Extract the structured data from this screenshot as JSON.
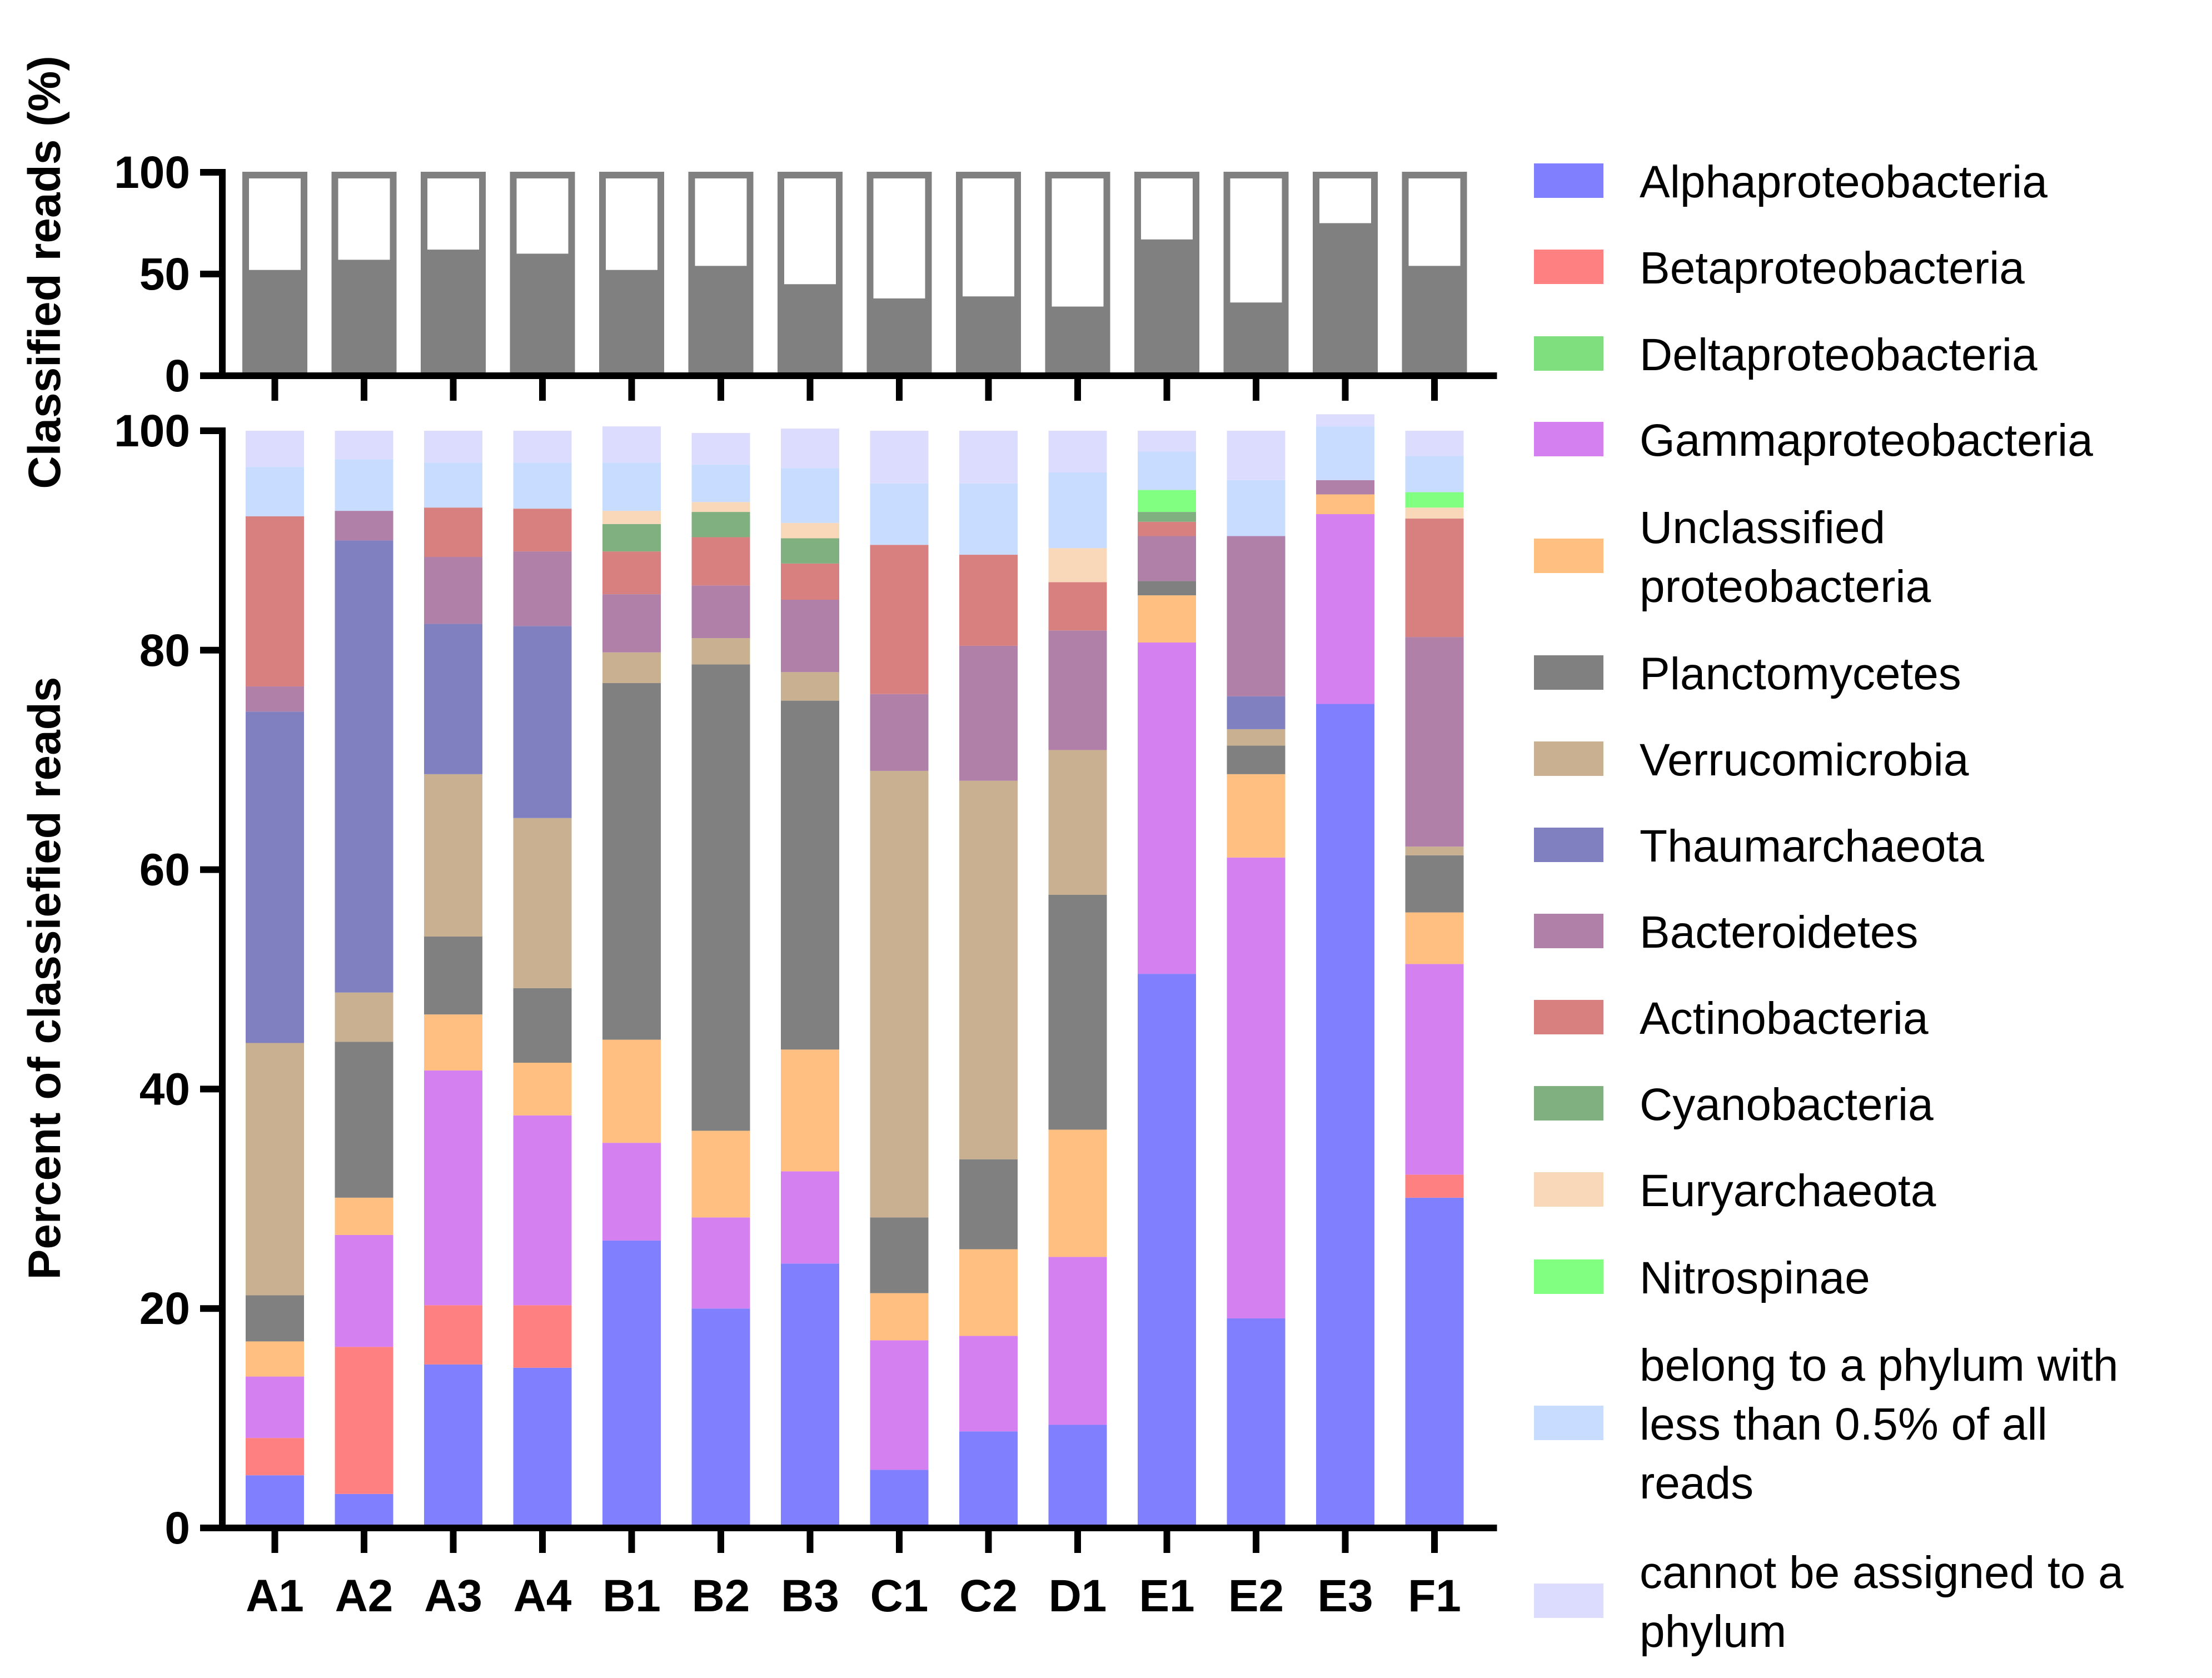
{
  "chart_data": [
    {
      "type": "bar",
      "stacked": true,
      "title": "",
      "xlabel": "",
      "ylabel": "Classified reads (%)",
      "ylim": [
        0,
        100
      ],
      "yticks": [
        0,
        50,
        100
      ],
      "categories": [
        "A1",
        "A2",
        "A3",
        "A4",
        "B1",
        "B2",
        "B3",
        "C1",
        "C2",
        "D1",
        "E1",
        "E2",
        "E3",
        "F1"
      ],
      "series": [
        {
          "name": "classified",
          "color": "#808080",
          "values": [
            52,
            57,
            62,
            60,
            52,
            54,
            45,
            38,
            39,
            34,
            67,
            36,
            75,
            54
          ]
        },
        {
          "name": "unclassified",
          "color": "#ffffff",
          "values": [
            48,
            43,
            38,
            40,
            48,
            46,
            55,
            62,
            61,
            66,
            33,
            64,
            25,
            46
          ]
        }
      ]
    },
    {
      "type": "bar",
      "stacked": true,
      "title": "",
      "xlabel": "",
      "ylabel": "Percent of classiefied reads",
      "ylim": [
        0,
        100
      ],
      "yticks": [
        0,
        20,
        40,
        60,
        80,
        100
      ],
      "legend_position": "right",
      "categories": [
        "A1",
        "A2",
        "A3",
        "A4",
        "B1",
        "B2",
        "B3",
        "C1",
        "C2",
        "D1",
        "E1",
        "E2",
        "E3",
        "F1"
      ],
      "series": [
        {
          "name": "Alphaproteobacteria",
          "color": "#8080ff",
          "values": [
            4.8,
            3.1,
            14.9,
            14.6,
            26.2,
            20.0,
            24.1,
            5.3,
            8.8,
            9.4,
            50.5,
            19.1,
            75.1,
            30.1
          ]
        },
        {
          "name": "Betaproteobacteria",
          "color": "#ff8080",
          "values": [
            3.4,
            13.4,
            5.4,
            5.7,
            0,
            0,
            0,
            0,
            0,
            0,
            0,
            0,
            0,
            2.1
          ]
        },
        {
          "name": "Deltaproteobacteria",
          "color": "#7fdf7f",
          "values": [
            0,
            0,
            0,
            0,
            0,
            0,
            0,
            0,
            0,
            0,
            0,
            0,
            0,
            0
          ]
        },
        {
          "name": "Gammaproteobacteria",
          "color": "#d580f0",
          "values": [
            5.6,
            10.2,
            21.4,
            17.3,
            8.9,
            8.3,
            8.4,
            11.8,
            8.7,
            15.3,
            30.2,
            42.0,
            17.3,
            19.2
          ]
        },
        {
          "name": "Unclassified\nproteobacteria",
          "color": "#ffbf80",
          "values": [
            3.2,
            3.4,
            5.1,
            4.8,
            9.4,
            7.9,
            11.1,
            4.3,
            7.9,
            11.6,
            4.3,
            7.6,
            1.8,
            4.7
          ]
        },
        {
          "name": "Planctomycetes",
          "color": "#808080",
          "values": [
            4.2,
            14.2,
            7.1,
            6.8,
            32.5,
            42.5,
            31.8,
            6.9,
            8.2,
            21.4,
            1.3,
            2.6,
            0,
            5.2
          ]
        },
        {
          "name": "Verrucomicrobia",
          "color": "#c9b091",
          "values": [
            23.0,
            4.5,
            14.8,
            15.5,
            2.8,
            2.4,
            2.6,
            40.7,
            34.5,
            13.2,
            0,
            1.5,
            0,
            0.8
          ]
        },
        {
          "name": "Thaumarchaeota",
          "color": "#8080c0",
          "values": [
            30.2,
            41.2,
            13.7,
            17.5,
            0,
            0,
            0,
            0,
            0,
            0,
            0,
            3.0,
            0,
            0
          ]
        },
        {
          "name": "Bacteroidetes",
          "color": "#b080a8",
          "values": [
            2.3,
            2.7,
            6.1,
            6.8,
            5.3,
            4.8,
            6.6,
            7.0,
            12.3,
            10.9,
            4.1,
            14.6,
            1.3,
            19.1
          ]
        },
        {
          "name": "Actinobacteria",
          "color": "#d88080",
          "values": [
            15.5,
            0,
            4.5,
            3.9,
            3.9,
            4.4,
            3.3,
            13.6,
            8.3,
            4.4,
            1.3,
            0,
            0,
            10.8
          ]
        },
        {
          "name": "Cyanobacteria",
          "color": "#80b080",
          "values": [
            0,
            0,
            0,
            0,
            2.5,
            2.3,
            2.3,
            0,
            0,
            0,
            0.9,
            0,
            0,
            0
          ]
        },
        {
          "name": "Euryarchaeota",
          "color": "#f8d8b8",
          "values": [
            0,
            0,
            0,
            0,
            1.2,
            0.9,
            1.4,
            0,
            0,
            3.1,
            0,
            0,
            0,
            1.0
          ]
        },
        {
          "name": "Nitrospinae",
          "color": "#80ff80",
          "values": [
            0,
            0,
            0,
            0,
            0,
            0,
            0,
            0,
            0,
            0,
            2.0,
            0,
            0,
            1.4
          ]
        },
        {
          "name": "belong to a phylum with\nless than 0.5% of all\nreads",
          "color": "#c8dcff",
          "values": [
            4.5,
            4.7,
            4.1,
            4.2,
            4.4,
            3.4,
            5.0,
            5.6,
            6.5,
            6.9,
            3.5,
            5.1,
            4.9,
            3.3
          ]
        },
        {
          "name": "cannot be assigned to a\nphylum",
          "color": "#dcdcff",
          "values": [
            3.3,
            2.6,
            2.9,
            2.9,
            3.3,
            2.9,
            3.6,
            4.8,
            4.8,
            3.8,
            1.9,
            4.5,
            1.1,
            2.3
          ]
        }
      ]
    }
  ]
}
